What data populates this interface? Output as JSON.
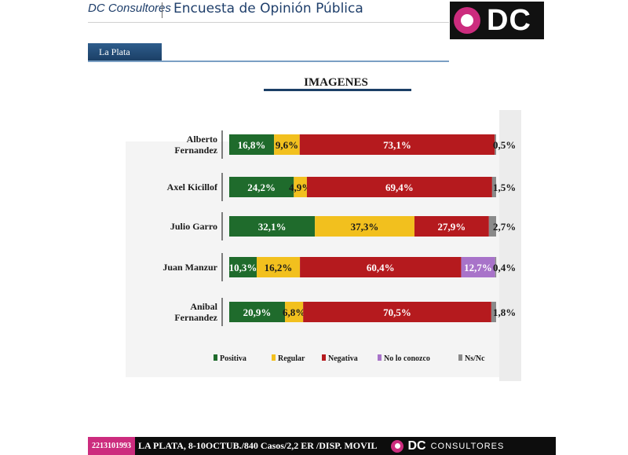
{
  "header": {
    "brand": "DC Consultores",
    "title": "Encuesta de Opinión Pública",
    "logo_text": "DC"
  },
  "location": "La Plata",
  "footer": {
    "phone": "2213101993",
    "info": "LA PLATA, 8-10OCTUB./840 Casos/2,2 ER /DISP. MOVIL",
    "logo_dc": "DC",
    "logo_consultores": "CONSULTORES"
  },
  "colors": {
    "positiva": "#1f6b2c",
    "regular": "#f2c01e",
    "negativa": "#b51a1e",
    "no_lo_conozco": "#a873c9",
    "ns_nc": "#8a8a8a",
    "brand_pink": "#cc2c7e",
    "brand_blue": "#1f3f6b"
  },
  "chart_data": {
    "type": "bar",
    "orientation": "horizontal-stacked-100",
    "title": "IMAGENES",
    "categories": [
      [
        "Alberto",
        "Fernandez"
      ],
      [
        "Axel Kicillof"
      ],
      [
        "Julio Garro"
      ],
      [
        "Juan Manzur"
      ],
      [
        "Anibal",
        "Fernandez"
      ]
    ],
    "series": [
      {
        "name": "Positiva",
        "color": "#1f6b2c",
        "values": [
          16.8,
          24.2,
          32.1,
          10.3,
          20.9
        ],
        "labels": [
          "16,8%",
          "24,2%",
          "32,1%",
          "10,3%",
          "20,9%"
        ]
      },
      {
        "name": "Regular",
        "color": "#f2c01e",
        "values": [
          9.6,
          4.9,
          37.3,
          16.2,
          6.8
        ],
        "labels": [
          "9,6%",
          "4,9%",
          "37,3%",
          "16,2%",
          "6,8%"
        ]
      },
      {
        "name": "Negativa",
        "color": "#b51a1e",
        "values": [
          73.1,
          69.4,
          27.9,
          60.4,
          70.5
        ],
        "labels": [
          "73,1%",
          "69,4%",
          "27,9%",
          "60,4%",
          "70,5%"
        ]
      },
      {
        "name": "No lo conozco",
        "color": "#a873c9",
        "values": [
          0,
          0,
          0,
          12.7,
          0
        ],
        "labels": [
          "",
          "",
          "",
          "12,7%",
          ""
        ]
      },
      {
        "name": "Ns/Nc",
        "color": "#8a8a8a",
        "values": [
          0.5,
          1.5,
          2.7,
          0.4,
          1.8
        ],
        "labels": [
          "0,5%",
          "1,5%",
          "2,7%",
          "0,4%",
          "1,8%"
        ]
      }
    ],
    "legend_position": "bottom",
    "grid": false
  }
}
